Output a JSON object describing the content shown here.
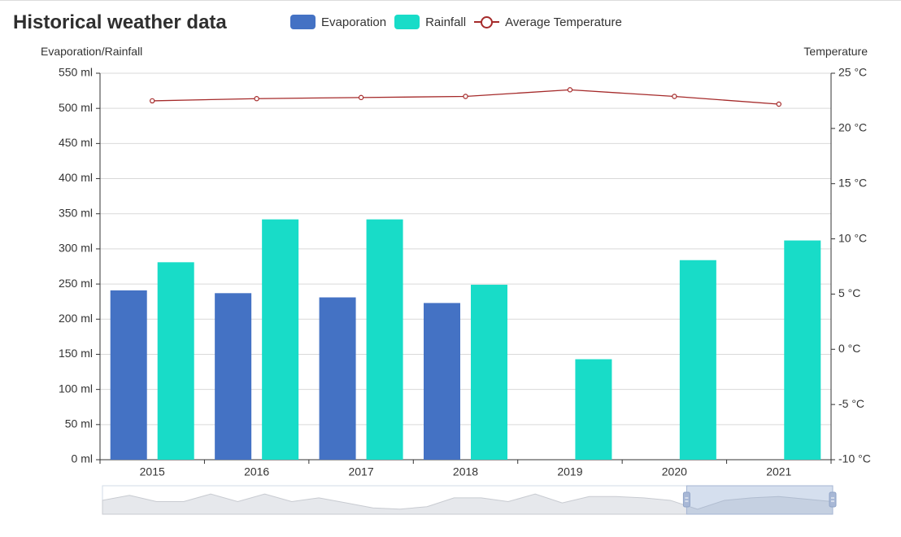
{
  "chart_data": {
    "type": "bar",
    "title": "Historical weather data",
    "categories": [
      "2015",
      "2016",
      "2017",
      "2018",
      "2019",
      "2020",
      "2021"
    ],
    "series": [
      {
        "name": "Evaporation",
        "type": "bar",
        "axis": "left",
        "color": "#4472c4",
        "values": [
          241,
          237,
          231,
          223,
          null,
          null,
          null
        ]
      },
      {
        "name": "Rainfall",
        "type": "bar",
        "axis": "left",
        "color": "#18dcc8",
        "values": [
          281,
          342,
          342,
          249,
          143,
          284,
          312
        ]
      },
      {
        "name": "Average Temperature",
        "type": "line",
        "axis": "right",
        "color": "#a52a2a",
        "values": [
          22.5,
          22.7,
          22.8,
          22.9,
          23.5,
          22.9,
          22.2
        ]
      }
    ],
    "y_left": {
      "label": "Evaporation/Rainfall",
      "range": [
        0,
        550
      ],
      "ticks": [
        "0 ml",
        "50 ml",
        "100 ml",
        "150 ml",
        "200 ml",
        "250 ml",
        "300 ml",
        "350 ml",
        "400 ml",
        "450 ml",
        "500 ml",
        "550 ml"
      ]
    },
    "y_right": {
      "label": "Temperature",
      "range": [
        -10,
        25
      ],
      "ticks": [
        "-10 °C",
        "-5 °C",
        "0 °C",
        "5 °C",
        "10 °C",
        "15 °C",
        "20 °C",
        "25 °C"
      ]
    },
    "grid": true,
    "legend_position": "top",
    "data_zoom": {
      "selected_range": [
        0.8,
        1.0
      ],
      "thumbnail_profile": [
        0.55,
        0.75,
        0.5,
        0.5,
        0.8,
        0.5,
        0.8,
        0.5,
        0.65,
        0.45,
        0.25,
        0.2,
        0.3,
        0.65,
        0.65,
        0.5,
        0.8,
        0.45,
        0.7,
        0.7,
        0.65,
        0.55,
        0.2,
        0.55,
        0.65,
        0.7,
        0.6,
        0.5
      ]
    }
  }
}
